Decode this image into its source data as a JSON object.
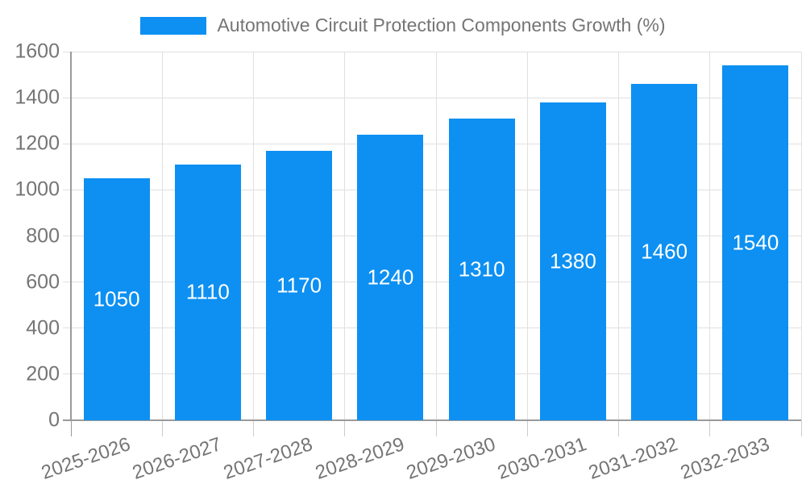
{
  "chart_data": {
    "type": "bar",
    "title": "Automotive Circuit Protection Components Growth (%)",
    "categories": [
      "2025-2026",
      "2026-2027",
      "2027-2028",
      "2028-2029",
      "2029-2030",
      "2030-2031",
      "2031-2032",
      "2032-2033"
    ],
    "values": [
      1050,
      1110,
      1170,
      1240,
      1310,
      1380,
      1460,
      1540
    ],
    "value_labels": [
      "1050",
      "1110",
      "1170",
      "1240",
      "1310",
      "1380",
      "1460",
      "1540"
    ],
    "yticks": [
      0,
      200,
      400,
      600,
      800,
      1000,
      1200,
      1400,
      1600
    ],
    "ylim": [
      0,
      1600
    ],
    "xlabel": "",
    "ylabel": "",
    "grid": true,
    "legend_position": "top-center",
    "x_label_rotation_deg": -19,
    "colors": {
      "bar": "#0d90f2",
      "value_label": "#ffffff",
      "axis_label": "#757575",
      "grid_line": "#e0e0e0",
      "tick_line": "#cccccc",
      "axis_line": "#9a9a9a",
      "background": "#ffffff"
    }
  }
}
